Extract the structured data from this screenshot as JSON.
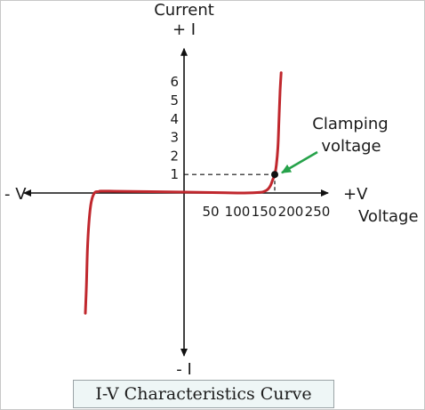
{
  "chart_data": {
    "type": "line",
    "title": "",
    "y_axis_title": "Current",
    "y_positive_label": "+ I",
    "y_negative_label": "- I",
    "x_negative_label": "- V",
    "x_positive_label": "+V",
    "xlabel": "Voltage",
    "x_ticks": [
      "50",
      "100",
      "150",
      "200",
      "250"
    ],
    "y_ticks": [
      "1",
      "2",
      "3",
      "4",
      "5",
      "6"
    ],
    "annotation": "Clamping voltage",
    "annotation_lines": [
      "Clamping",
      "voltage"
    ],
    "clamping_point": {
      "x": 170,
      "y": 1
    },
    "series": [
      {
        "color": "#c0272d",
        "points": [
          [
            -185,
            -6.5
          ],
          [
            -183,
            -5.0
          ],
          [
            -181,
            -3.0
          ],
          [
            -178,
            -1.5
          ],
          [
            -174,
            -0.5
          ],
          [
            -168,
            0.0
          ],
          [
            -160,
            0.08
          ],
          [
            -140,
            0.1
          ],
          [
            0,
            0.05
          ],
          [
            100,
            0.0
          ],
          [
            140,
            0.03
          ],
          [
            150,
            0.08
          ],
          [
            157,
            0.2
          ],
          [
            162,
            0.4
          ],
          [
            166,
            0.7
          ],
          [
            170,
            1.0
          ],
          [
            173,
            1.5
          ],
          [
            176,
            2.5
          ],
          [
            178,
            4.0
          ],
          [
            180,
            5.5
          ],
          [
            182,
            6.5
          ]
        ]
      }
    ],
    "xlim": [
      -300,
      270
    ],
    "ylim": [
      -8.8,
      7.8
    ],
    "grid": false
  },
  "caption": "I-V Characteristics Curve",
  "colors": {
    "curve": "#c0272d",
    "arrow": "#26a24a",
    "axis": "#111111"
  }
}
